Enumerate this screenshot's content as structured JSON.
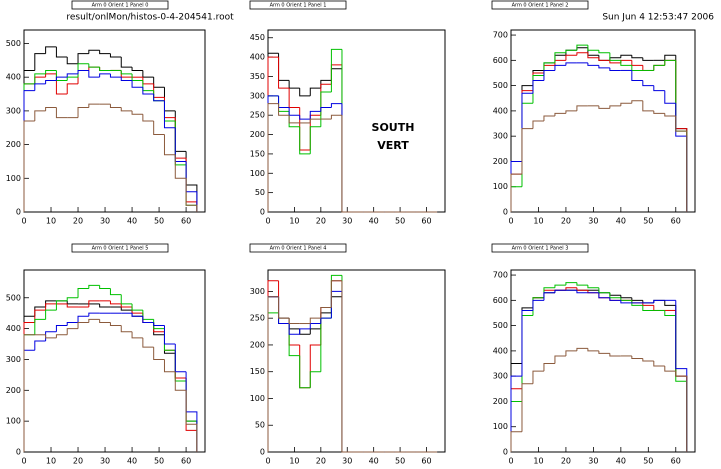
{
  "header": {
    "file": "result/onlMon/histos-0-4-204541.root",
    "date": "Sun Jun  4 12:53:47 2006"
  },
  "chart_data": [
    {
      "type": "histogram",
      "title": "Arm 0 Orient 1 Panel 0",
      "bins": [
        0,
        4,
        8,
        12,
        16,
        20,
        24,
        28,
        32,
        36,
        40,
        44,
        48,
        52,
        56,
        60,
        64
      ],
      "xlim": [
        0,
        67
      ],
      "xticks": [
        0,
        10,
        20,
        30,
        40,
        50,
        60
      ],
      "ylim": [
        0,
        540
      ],
      "yticks": [
        0,
        100,
        200,
        300,
        400,
        500
      ],
      "series": [
        {
          "color": "#000000",
          "values": [
            420,
            470,
            490,
            460,
            440,
            470,
            480,
            470,
            460,
            430,
            420,
            400,
            370,
            300,
            180,
            80
          ]
        },
        {
          "color": "#e00000",
          "values": [
            380,
            400,
            410,
            350,
            380,
            420,
            430,
            420,
            420,
            400,
            400,
            380,
            340,
            280,
            160,
            30
          ]
        },
        {
          "color": "#00c000",
          "values": [
            380,
            410,
            420,
            390,
            400,
            440,
            430,
            420,
            420,
            410,
            390,
            360,
            330,
            270,
            140,
            20
          ]
        },
        {
          "color": "#0000e0",
          "values": [
            360,
            380,
            390,
            400,
            410,
            420,
            400,
            410,
            400,
            390,
            370,
            350,
            330,
            250,
            150,
            60
          ]
        },
        {
          "color": "#8b5a3c",
          "values": [
            270,
            300,
            310,
            280,
            280,
            310,
            320,
            320,
            310,
            300,
            290,
            270,
            230,
            170,
            100,
            20
          ]
        }
      ]
    },
    {
      "type": "histogram",
      "title": "Arm 0 Orient 1 Panel 1",
      "annotations": [
        "SOUTH",
        "VERT"
      ],
      "bins": [
        0,
        4,
        8,
        12,
        16,
        20,
        24,
        28,
        32,
        36,
        40,
        44,
        48,
        52,
        56,
        60,
        64
      ],
      "xlim": [
        0,
        67
      ],
      "xticks": [
        0,
        10,
        20,
        30,
        40,
        50,
        60
      ],
      "ylim": [
        0,
        470
      ],
      "yticks": [
        0,
        50,
        100,
        150,
        200,
        250,
        300,
        350,
        400,
        450
      ],
      "series": [
        {
          "color": "#000000",
          "values": [
            410,
            340,
            320,
            300,
            320,
            340,
            370,
            0,
            0,
            0,
            0,
            0,
            0,
            0,
            0,
            0
          ]
        },
        {
          "color": "#e00000",
          "values": [
            400,
            320,
            270,
            160,
            250,
            330,
            380,
            0,
            0,
            0,
            0,
            0,
            0,
            0,
            0,
            0
          ]
        },
        {
          "color": "#00c000",
          "values": [
            300,
            260,
            220,
            150,
            220,
            310,
            420,
            0,
            0,
            0,
            0,
            0,
            0,
            0,
            0,
            0
          ]
        },
        {
          "color": "#0000e0",
          "values": [
            300,
            270,
            250,
            240,
            260,
            270,
            280,
            0,
            0,
            0,
            0,
            0,
            0,
            0,
            0,
            0
          ]
        },
        {
          "color": "#8b5a3c",
          "values": [
            280,
            250,
            230,
            230,
            240,
            240,
            250,
            0,
            0,
            0,
            0,
            0,
            0,
            0,
            0,
            0
          ]
        }
      ]
    },
    {
      "type": "histogram",
      "title": "Arm 0 Orient 1 Panel 2",
      "bins": [
        0,
        4,
        8,
        12,
        16,
        20,
        24,
        28,
        32,
        36,
        40,
        44,
        48,
        52,
        56,
        60,
        64
      ],
      "xlim": [
        0,
        67
      ],
      "xticks": [
        0,
        10,
        20,
        30,
        40,
        50,
        60
      ],
      "ylim": [
        0,
        720
      ],
      "yticks": [
        0,
        100,
        200,
        300,
        400,
        500,
        600,
        700
      ],
      "series": [
        {
          "color": "#000000",
          "values": [
            200,
            500,
            560,
            590,
            620,
            640,
            650,
            620,
            600,
            610,
            620,
            610,
            600,
            600,
            620,
            330
          ]
        },
        {
          "color": "#e00000",
          "values": [
            150,
            480,
            550,
            580,
            600,
            620,
            630,
            610,
            600,
            590,
            600,
            580,
            560,
            580,
            600,
            330
          ]
        },
        {
          "color": "#00c000",
          "values": [
            100,
            430,
            540,
            590,
            630,
            640,
            660,
            640,
            630,
            600,
            580,
            560,
            560,
            580,
            600,
            320
          ]
        },
        {
          "color": "#0000e0",
          "values": [
            200,
            470,
            520,
            560,
            580,
            590,
            590,
            580,
            570,
            560,
            560,
            520,
            500,
            480,
            430,
            300
          ]
        },
        {
          "color": "#8b5a3c",
          "values": [
            150,
            330,
            360,
            380,
            390,
            400,
            420,
            420,
            410,
            420,
            430,
            440,
            400,
            390,
            380,
            320
          ]
        }
      ]
    },
    {
      "type": "histogram",
      "title": "Arm 0 Orient 1 Panel 5",
      "bins": [
        0,
        4,
        8,
        12,
        16,
        20,
        24,
        28,
        32,
        36,
        40,
        44,
        48,
        52,
        56,
        60,
        64
      ],
      "xlim": [
        0,
        67
      ],
      "xticks": [
        0,
        10,
        20,
        30,
        40,
        50,
        60
      ],
      "ylim": [
        0,
        590
      ],
      "yticks": [
        0,
        100,
        200,
        300,
        400,
        500
      ],
      "series": [
        {
          "color": "#000000",
          "values": [
            440,
            470,
            490,
            490,
            480,
            480,
            480,
            470,
            470,
            460,
            440,
            420,
            380,
            320,
            240,
            100
          ]
        },
        {
          "color": "#e00000",
          "values": [
            420,
            460,
            480,
            480,
            470,
            470,
            490,
            490,
            480,
            470,
            450,
            420,
            390,
            330,
            240,
            70
          ]
        },
        {
          "color": "#00c000",
          "values": [
            380,
            430,
            460,
            490,
            500,
            530,
            540,
            530,
            510,
            480,
            460,
            430,
            400,
            330,
            230,
            100
          ]
        },
        {
          "color": "#0000e0",
          "values": [
            330,
            360,
            390,
            410,
            420,
            440,
            450,
            450,
            450,
            450,
            440,
            420,
            410,
            350,
            260,
            130
          ]
        },
        {
          "color": "#8b5a3c",
          "values": [
            380,
            380,
            370,
            380,
            400,
            420,
            430,
            420,
            410,
            390,
            370,
            340,
            300,
            260,
            200,
            90
          ]
        }
      ]
    },
    {
      "type": "histogram",
      "title": "Arm 0 Orient 1 Panel 4",
      "bins": [
        0,
        4,
        8,
        12,
        16,
        20,
        24,
        28,
        32,
        36,
        40,
        44,
        48,
        52,
        56,
        60,
        64
      ],
      "xlim": [
        0,
        67
      ],
      "xticks": [
        0,
        10,
        20,
        30,
        40,
        50,
        60
      ],
      "ylim": [
        0,
        340
      ],
      "yticks": [
        0,
        50,
        100,
        150,
        200,
        250,
        300
      ],
      "series": [
        {
          "color": "#000000",
          "values": [
            290,
            250,
            230,
            220,
            230,
            260,
            290,
            0,
            0,
            0,
            0,
            0,
            0,
            0,
            0,
            0
          ]
        },
        {
          "color": "#e00000",
          "values": [
            320,
            240,
            200,
            120,
            200,
            270,
            320,
            0,
            0,
            0,
            0,
            0,
            0,
            0,
            0,
            0
          ]
        },
        {
          "color": "#00c000",
          "values": [
            260,
            240,
            180,
            120,
            150,
            250,
            330,
            0,
            0,
            0,
            0,
            0,
            0,
            0,
            0,
            0
          ]
        },
        {
          "color": "#0000e0",
          "values": [
            290,
            240,
            220,
            230,
            240,
            250,
            300,
            0,
            0,
            0,
            0,
            0,
            0,
            0,
            0,
            0
          ]
        },
        {
          "color": "#8b5a3c",
          "values": [
            290,
            250,
            240,
            240,
            250,
            270,
            320,
            0,
            0,
            0,
            0,
            0,
            0,
            0,
            0,
            0
          ]
        }
      ]
    },
    {
      "type": "histogram",
      "title": "Arm 0 Orient 1 Panel 3",
      "bins": [
        0,
        4,
        8,
        12,
        16,
        20,
        24,
        28,
        32,
        36,
        40,
        44,
        48,
        52,
        56,
        60,
        64
      ],
      "xlim": [
        0,
        67
      ],
      "xticks": [
        0,
        10,
        20,
        30,
        40,
        50,
        60
      ],
      "ylim": [
        0,
        720
      ],
      "yticks": [
        0,
        100,
        200,
        300,
        400,
        500,
        600,
        700
      ],
      "series": [
        {
          "color": "#000000",
          "values": [
            350,
            570,
            610,
            630,
            640,
            640,
            640,
            640,
            630,
            620,
            610,
            600,
            590,
            600,
            580,
            300
          ]
        },
        {
          "color": "#e00000",
          "values": [
            250,
            560,
            610,
            640,
            640,
            650,
            640,
            630,
            610,
            600,
            600,
            590,
            580,
            560,
            560,
            300
          ]
        },
        {
          "color": "#00c000",
          "values": [
            200,
            540,
            610,
            650,
            660,
            670,
            660,
            650,
            630,
            610,
            600,
            580,
            560,
            560,
            540,
            280
          ]
        },
        {
          "color": "#0000e0",
          "values": [
            300,
            560,
            600,
            630,
            640,
            640,
            630,
            630,
            610,
            600,
            590,
            590,
            590,
            600,
            600,
            330
          ]
        },
        {
          "color": "#8b5a3c",
          "values": [
            80,
            270,
            320,
            350,
            380,
            400,
            410,
            400,
            390,
            380,
            380,
            370,
            360,
            340,
            320,
            300
          ]
        }
      ]
    }
  ]
}
